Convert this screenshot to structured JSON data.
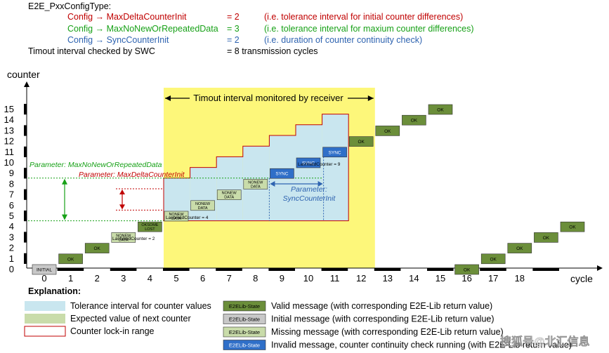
{
  "header": {
    "title": "E2E_PxxConfigType:",
    "configs": [
      {
        "label": "Config → MaxDeltaCounterInit",
        "value": "= 2",
        "note": "(i.e. tolerance interval for initial counter differences)",
        "color": "#c00000"
      },
      {
        "label": "Config → MaxNoNewOrRepeatedData",
        "value": "= 3",
        "note": "(i.e. tolerance interval for maxium counter differences)",
        "color": "#17a117"
      },
      {
        "label": "Config → SyncCounterInit",
        "value": "= 2",
        "note": "(i.e. duration of counter continuity check)",
        "color": "#2e63b0"
      }
    ],
    "timeout_label": "Timout interval checked by SWC",
    "timeout_value": "= 8 transmission cycles"
  },
  "axes": {
    "y_title": "counter",
    "x_title": "cycle",
    "y_ticks": [
      "0",
      "1",
      "2",
      "3",
      "4",
      "5",
      "6",
      "7",
      "8",
      "9",
      "10",
      "11",
      "12",
      "13",
      "14",
      "15"
    ],
    "x_ticks": [
      "0",
      "1",
      "2",
      "3",
      "4",
      "5",
      "6",
      "7",
      "8",
      "9",
      "10",
      "11",
      "12",
      "13",
      "14",
      "15",
      "16",
      "17",
      "18"
    ]
  },
  "timeout_band_label": "Timout interval monitored by receiver",
  "params": {
    "max_no_new": "Parameter: MaxNoNewOrRepeatedData",
    "max_delta": "Parameter: MaxDeltaCounterInit",
    "sync_line1": "Parameter:",
    "sync_line2": "SyncCounterInit"
  },
  "annotations": {
    "last_valid_2": "LastValidCounter = 2",
    "last_valid_4": "LastValidCounter = 4",
    "last_valid_9": "LastValidCounter = 9"
  },
  "messages": [
    {
      "cycle": 0,
      "counter": 0,
      "state": "initial",
      "lines": [
        "INITIAL"
      ]
    },
    {
      "cycle": 1,
      "counter": 1,
      "state": "valid",
      "lines": [
        "OK"
      ]
    },
    {
      "cycle": 2,
      "counter": 2,
      "state": "valid",
      "lines": [
        "OK"
      ]
    },
    {
      "cycle": 3,
      "counter": 3,
      "state": "missing",
      "lines": [
        "NONEW",
        "DATA"
      ]
    },
    {
      "cycle": 4,
      "counter": 4,
      "state": "valid",
      "lines": [
        "OKSOME",
        "LOST"
      ]
    },
    {
      "cycle": 5,
      "counter": 5,
      "state": "missing",
      "lines": [
        "NONEW",
        "DATA"
      ]
    },
    {
      "cycle": 6,
      "counter": 6,
      "state": "missing",
      "lines": [
        "NONEW",
        "DATA"
      ]
    },
    {
      "cycle": 7,
      "counter": 7,
      "state": "missing",
      "lines": [
        "NONEW",
        "DATA"
      ]
    },
    {
      "cycle": 8,
      "counter": 8,
      "state": "missing",
      "lines": [
        "NONEW",
        "DATA"
      ]
    },
    {
      "cycle": 9,
      "counter": 9,
      "state": "sync",
      "lines": [
        "SYNC"
      ]
    },
    {
      "cycle": 10,
      "counter": 10,
      "state": "sync",
      "lines": [
        "SYNC"
      ]
    },
    {
      "cycle": 11,
      "counter": 11,
      "state": "sync",
      "lines": [
        "SYNC"
      ]
    },
    {
      "cycle": 12,
      "counter": 12,
      "state": "valid",
      "lines": [
        "OK"
      ]
    },
    {
      "cycle": 13,
      "counter": 13,
      "state": "valid",
      "lines": [
        "OK"
      ]
    },
    {
      "cycle": 14,
      "counter": 14,
      "state": "valid",
      "lines": [
        "OK"
      ]
    },
    {
      "cycle": 15,
      "counter": 15,
      "state": "valid",
      "lines": [
        "OK"
      ]
    },
    {
      "cycle": 16,
      "counter": 0,
      "state": "valid",
      "lines": [
        "OK"
      ]
    },
    {
      "cycle": 17,
      "counter": 1,
      "state": "valid",
      "lines": [
        "OK"
      ]
    },
    {
      "cycle": 18,
      "counter": 2,
      "state": "valid",
      "lines": [
        "OK"
      ]
    },
    {
      "cycle": 19,
      "counter": 3,
      "state": "valid",
      "lines": [
        "OK"
      ]
    },
    {
      "cycle": 20,
      "counter": 4,
      "state": "valid",
      "lines": [
        "OK"
      ]
    }
  ],
  "tolerance_steps": [
    {
      "from": 5,
      "to": 6,
      "low": 4.5,
      "high": 8.5
    },
    {
      "from": 6,
      "to": 7,
      "low": 4.5,
      "high": 9.5
    },
    {
      "from": 7,
      "to": 8,
      "low": 4.5,
      "high": 10.5
    },
    {
      "from": 8,
      "to": 9,
      "low": 4.5,
      "high": 11.5
    },
    {
      "from": 9,
      "to": 10,
      "low": 4.5,
      "high": 12.5
    },
    {
      "from": 10,
      "to": 11,
      "low": 4.5,
      "high": 13.5
    },
    {
      "from": 11,
      "to": 12,
      "low": 4.5,
      "high": 14.5
    }
  ],
  "legend": {
    "title": "Explanation:",
    "left": [
      {
        "kind": "tolerance",
        "label": "Tolerance interval for counter values"
      },
      {
        "kind": "expected",
        "label": "Expected value of next counter"
      },
      {
        "kind": "lockin",
        "label": "Counter lock-in range"
      }
    ],
    "right": [
      {
        "kind": "valid",
        "box": "E2ELib-State",
        "label": "Valid message (with corresponding E2E-Lib return value)"
      },
      {
        "kind": "initial",
        "box": "E2ELib-State",
        "label": "Initial message (with corresponding E2E-Lib return value)"
      },
      {
        "kind": "missing",
        "box": "E2ELib-State",
        "label": "Missing message (with corresponding E2E-Lib return value)"
      },
      {
        "kind": "sync",
        "box": "E2ELib-State",
        "label": "Invalid message, counter continuity check running (with E2E-Lib return value)"
      }
    ]
  },
  "watermark": "搜狐号@北汇信息",
  "colors": {
    "valid": "#6b8e3a",
    "initial": "#c8c8c8",
    "missing": "#c9dcaa",
    "sync": "#2f6fc8",
    "tolerance": "#c9e6ef",
    "timeout_band": "#fdf77a",
    "red": "#c00000",
    "green": "#17a117",
    "blue": "#2e63b0"
  }
}
